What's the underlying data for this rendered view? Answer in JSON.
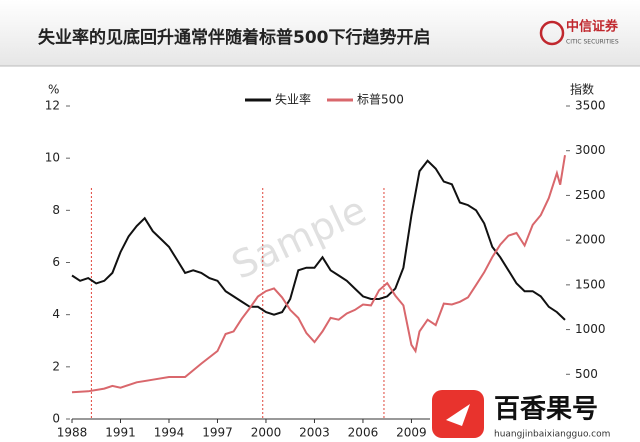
{
  "header": {
    "title": "失业率的见底回升通常伴随着标普500下行趋势开启",
    "logo_cn": "中信证券",
    "logo_en": "CITIC SECURITIES"
  },
  "watermark": "Sample",
  "footer": {
    "brand": "百香果号",
    "url": "huangjinbaixiangguo.com"
  },
  "chart_data": {
    "type": "line",
    "y_label": "%",
    "y2_label": "指数",
    "xlim": [
      1988,
      2018.5
    ],
    "xticks": [
      1988,
      1991,
      1994,
      1997,
      2000,
      2003,
      2006,
      2009
    ],
    "ylim": [
      0,
      12
    ],
    "yticks": [
      0,
      2,
      4,
      6,
      8,
      10,
      12
    ],
    "y2lim": [
      0,
      3500
    ],
    "y2ticks": [
      500,
      1000,
      1500,
      2000,
      2500,
      3000,
      3500
    ],
    "vlines": [
      1989.2,
      1999.8,
      2007.3
    ],
    "vline_color": "#e0463c",
    "series": [
      {
        "name": "失业率",
        "color": "#111111",
        "axis": "y",
        "x": [
          1988.0,
          1988.5,
          1989.0,
          1989.5,
          1990.0,
          1990.5,
          1991.0,
          1991.5,
          1992.0,
          1992.5,
          1993.0,
          1993.5,
          1994.0,
          1994.5,
          1995.0,
          1995.5,
          1996.0,
          1996.5,
          1997.0,
          1997.5,
          1998.0,
          1998.5,
          1999.0,
          1999.5,
          2000.0,
          2000.5,
          2001.0,
          2001.5,
          2002.0,
          2002.5,
          2003.0,
          2003.5,
          2004.0,
          2004.5,
          2005.0,
          2005.5,
          2006.0,
          2006.5,
          2007.0,
          2007.5,
          2008.0,
          2008.5,
          2009.0,
          2009.5,
          2010.0,
          2010.5,
          2011.0,
          2011.5,
          2012.0,
          2012.5,
          2013.0,
          2013.5,
          2014.0,
          2014.5,
          2015.0,
          2015.5,
          2016.0,
          2016.5,
          2017.0,
          2017.5,
          2018.0,
          2018.5
        ],
        "values": [
          5.5,
          5.3,
          5.4,
          5.2,
          5.3,
          5.6,
          6.4,
          7.0,
          7.4,
          7.7,
          7.2,
          6.9,
          6.6,
          6.1,
          5.6,
          5.7,
          5.6,
          5.4,
          5.3,
          4.9,
          4.7,
          4.5,
          4.3,
          4.3,
          4.1,
          4.0,
          4.1,
          4.6,
          5.7,
          5.8,
          5.8,
          6.2,
          5.7,
          5.5,
          5.3,
          5.0,
          4.7,
          4.6,
          4.6,
          4.7,
          5.0,
          5.8,
          7.8,
          9.5,
          9.9,
          9.6,
          9.1,
          9.0,
          8.3,
          8.2,
          8.0,
          7.5,
          6.6,
          6.2,
          5.7,
          5.2,
          4.9,
          4.9,
          4.7,
          4.3,
          4.1,
          3.8
        ]
      },
      {
        "name": "标普500",
        "color": "#d9676c",
        "axis": "y2",
        "x": [
          1988.0,
          1989.0,
          1990.0,
          1990.5,
          1991.0,
          1992.0,
          1993.0,
          1994.0,
          1995.0,
          1996.0,
          1997.0,
          1997.5,
          1998.0,
          1998.5,
          1999.0,
          1999.5,
          2000.0,
          2000.5,
          2001.0,
          2001.5,
          2002.0,
          2002.5,
          2003.0,
          2003.5,
          2004.0,
          2004.5,
          2005.0,
          2005.5,
          2006.0,
          2006.5,
          2007.0,
          2007.5,
          2008.0,
          2008.5,
          2009.0,
          2009.25,
          2009.5,
          2010.0,
          2010.5,
          2011.0,
          2011.5,
          2012.0,
          2012.5,
          2013.0,
          2013.5,
          2014.0,
          2014.5,
          2015.0,
          2015.5,
          2016.0,
          2016.5,
          2017.0,
          2017.5,
          2018.0,
          2018.2,
          2018.5
        ],
        "values": [
          300,
          310,
          340,
          370,
          350,
          410,
          440,
          470,
          470,
          620,
          760,
          950,
          980,
          1120,
          1240,
          1370,
          1430,
          1460,
          1360,
          1220,
          1130,
          960,
          860,
          980,
          1130,
          1110,
          1180,
          1220,
          1280,
          1270,
          1440,
          1520,
          1380,
          1270,
          830,
          760,
          980,
          1110,
          1050,
          1290,
          1280,
          1310,
          1360,
          1500,
          1640,
          1810,
          1950,
          2050,
          2080,
          1940,
          2170,
          2280,
          2470,
          2750,
          2620,
          2950
        ]
      }
    ]
  }
}
